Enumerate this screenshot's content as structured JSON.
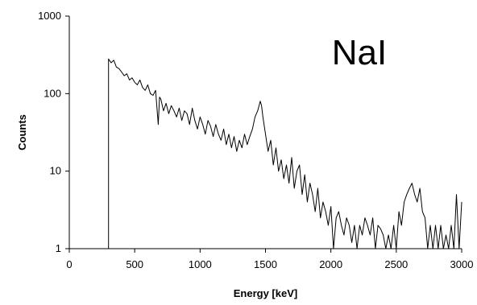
{
  "chart_data": {
    "type": "line",
    "title": "",
    "annotation": "NaI",
    "xlabel": "Energy [keV]",
    "ylabel": "Counts",
    "xlim": [
      0,
      3000
    ],
    "ylim": [
      1,
      1000
    ],
    "yscale": "log",
    "grid": false,
    "legend": "none",
    "x_ticks": [
      0,
      500,
      1000,
      1500,
      2000,
      2500,
      3000
    ],
    "x_tick_labels": [
      "0",
      "500",
      "1000",
      "1500",
      "2000",
      "2500",
      "3000"
    ],
    "y_ticks": [
      1,
      10,
      100,
      1000
    ],
    "y_tick_labels": [
      "1",
      "10",
      "100",
      "1000"
    ],
    "series": [
      {
        "color": "#000000",
        "x": [
          300,
          300,
          320,
          340,
          360,
          380,
          400,
          420,
          440,
          460,
          480,
          500,
          520,
          540,
          560,
          580,
          600,
          620,
          640,
          660,
          680,
          690,
          700,
          720,
          740,
          760,
          780,
          800,
          820,
          840,
          860,
          880,
          900,
          920,
          940,
          960,
          980,
          1000,
          1020,
          1040,
          1060,
          1080,
          1100,
          1120,
          1140,
          1160,
          1180,
          1200,
          1220,
          1240,
          1260,
          1280,
          1300,
          1320,
          1340,
          1360,
          1380,
          1400,
          1420,
          1440,
          1460,
          1470,
          1480,
          1500,
          1520,
          1540,
          1560,
          1580,
          1600,
          1620,
          1640,
          1660,
          1680,
          1700,
          1720,
          1740,
          1760,
          1780,
          1800,
          1820,
          1840,
          1860,
          1880,
          1900,
          1920,
          1940,
          1960,
          1980,
          2000,
          2020,
          2040,
          2060,
          2080,
          2100,
          2120,
          2140,
          2160,
          2180,
          2200,
          2220,
          2240,
          2260,
          2280,
          2300,
          2320,
          2340,
          2360,
          2380,
          2400,
          2420,
          2440,
          2460,
          2480,
          2500,
          2520,
          2540,
          2560,
          2580,
          2600,
          2620,
          2640,
          2660,
          2680,
          2700,
          2720,
          2740,
          2760,
          2780,
          2800,
          2820,
          2840,
          2860,
          2880,
          2900,
          2920,
          2940,
          2960,
          2980,
          3000
        ],
        "values": [
          1,
          280,
          250,
          270,
          220,
          210,
          190,
          170,
          180,
          150,
          160,
          140,
          130,
          150,
          120,
          110,
          130,
          100,
          95,
          110,
          40,
          90,
          85,
          60,
          75,
          55,
          70,
          60,
          50,
          65,
          45,
          60,
          55,
          40,
          65,
          45,
          35,
          50,
          40,
          30,
          45,
          38,
          28,
          40,
          30,
          25,
          35,
          22,
          30,
          20,
          28,
          18,
          25,
          20,
          30,
          22,
          28,
          35,
          50,
          60,
          80,
          70,
          50,
          30,
          18,
          25,
          12,
          20,
          10,
          14,
          8,
          12,
          7,
          15,
          6,
          10,
          12,
          5,
          9,
          4,
          7,
          5,
          3,
          6,
          2.5,
          4,
          3,
          2,
          3.5,
          1,
          2.5,
          3,
          2,
          1.5,
          2.5,
          2,
          1.2,
          2,
          1,
          2,
          1.5,
          2.5,
          2,
          1.5,
          2.5,
          1,
          2,
          1.8,
          1.5,
          1,
          1.5,
          1,
          2,
          1,
          3,
          2,
          4,
          5,
          6,
          7,
          5,
          4,
          6,
          3,
          2.5,
          1,
          2,
          1,
          2,
          1,
          2,
          1,
          1.5,
          1,
          2,
          1,
          5,
          1,
          4
        ]
      }
    ]
  }
}
